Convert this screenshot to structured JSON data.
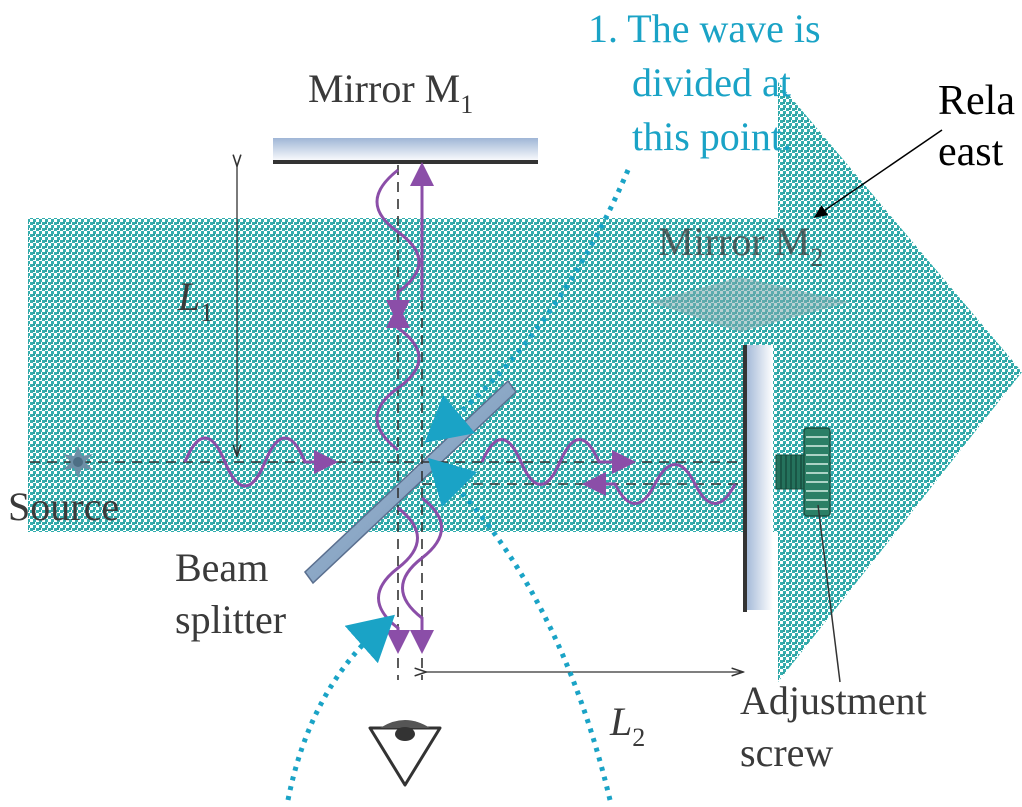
{
  "colors": {
    "arrow_pattern_a": "#10a0a0",
    "arrow_pattern_b": "#ffffff",
    "wave": "#8b4ea8",
    "note": "#1aa3c6",
    "mirror_edge": "#6a7fa3",
    "dark": "#3a3a3a",
    "screw": "#24725c",
    "ghost": "#7fa9ad"
  },
  "labels": {
    "mirror1": "Mirror M",
    "mirror1_sub": "1",
    "mirror2": "Mirror M",
    "mirror2_sub": "2",
    "L1": "L",
    "L1_sub": "1",
    "L2": "L",
    "L2_sub": "2",
    "source": "Source",
    "beam_line1": "Beam",
    "beam_line2": "splitter",
    "adjust_line1": "Adjustment",
    "adjust_line2": "screw"
  },
  "note": {
    "line1": "1. The wave is",
    "line2": "divided at",
    "line3": "this point."
  },
  "cut_label": {
    "line1": "Rela",
    "line2": "east"
  },
  "icons": [
    "source-star-icon",
    "eye-icon",
    "adjustment-screw-icon"
  ]
}
